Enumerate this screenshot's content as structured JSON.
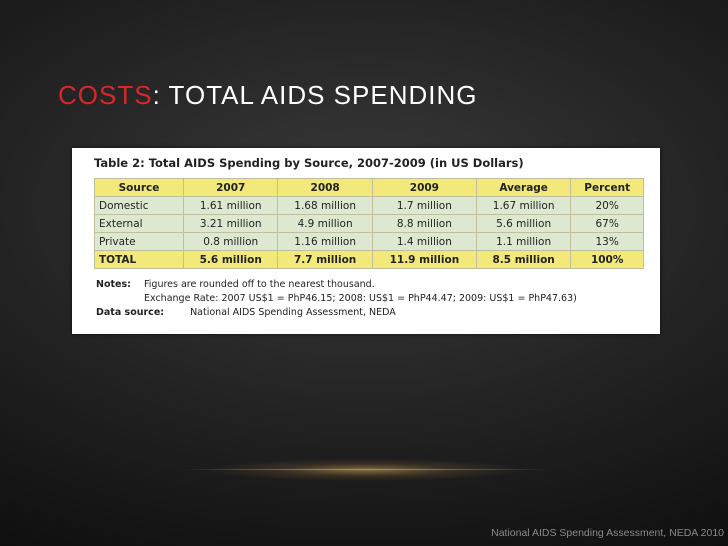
{
  "slide": {
    "title_accent": "COSTS",
    "title_rest": ": TOTAL AIDS SPENDING",
    "footer": "National AIDS Spending Assessment, NEDA 2010"
  },
  "table": {
    "caption": "Table 2: Total AIDS Spending by Source, 2007-2009 (in US Dollars)",
    "headers": [
      "Source",
      "2007",
      "2008",
      "2009",
      "Average",
      "Percent"
    ],
    "rows": [
      [
        "Domestic",
        "1.61 million",
        "1.68 million",
        "1.7 million",
        "1.67 million",
        "20%"
      ],
      [
        "External",
        "3.21 million",
        "4.9 million",
        "8.8 million",
        "5.6 million",
        "67%"
      ],
      [
        "Private",
        "0.8 million",
        "1.16 million",
        "1.4 million",
        "1.1 million",
        "13%"
      ],
      [
        "TOTAL",
        "5.6 million",
        "7.7 million",
        "11.9 million",
        "8.5 million",
        "100%"
      ]
    ],
    "notes_label": "Notes:",
    "notes_line1": "Figures are rounded off to the nearest thousand.",
    "notes_line2": "Exchange Rate: 2007 US$1 = PhP46.15; 2008: US$1 = PhP44.47; 2009: US$1 = PhP47.63)",
    "source_label": "Data source:",
    "source_text": "National AIDS Spending Assessment, NEDA"
  }
}
